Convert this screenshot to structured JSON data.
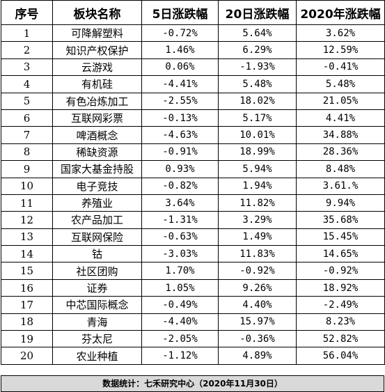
{
  "headers": [
    "序号",
    "板块名称",
    "5日涨跌幅",
    "20日涨跌幅",
    "2020年涨跌幅"
  ],
  "rows": [
    {
      "no": "1",
      "name": "可降解塑料",
      "d5": "-0.72%",
      "d20": "5.64%",
      "ytd": "3.62%"
    },
    {
      "no": "2",
      "name": "知识产权保护",
      "d5": "1.46%",
      "d20": "6.29%",
      "ytd": "12.59%"
    },
    {
      "no": "3",
      "name": "云游戏",
      "d5": "0.06%",
      "d20": "-1.93%",
      "ytd": "-0.41%"
    },
    {
      "no": "4",
      "name": "有机硅",
      "d5": "-4.41%",
      "d20": "5.48%",
      "ytd": "5.48%"
    },
    {
      "no": "5",
      "name": "有色冶炼加工",
      "d5": "-2.55%",
      "d20": "18.02%",
      "ytd": "21.05%"
    },
    {
      "no": "6",
      "name": "互联网彩票",
      "d5": "-0.13%",
      "d20": "5.17%",
      "ytd": "4.41%"
    },
    {
      "no": "7",
      "name": "啤酒概念",
      "d5": "-4.63%",
      "d20": "10.01%",
      "ytd": "34.88%"
    },
    {
      "no": "8",
      "name": "稀缺资源",
      "d5": "-0.91%",
      "d20": "18.99%",
      "ytd": "28.36%"
    },
    {
      "no": "9",
      "name": "国家大基金持股",
      "d5": "0.93%",
      "d20": "5.94%",
      "ytd": "8.48%"
    },
    {
      "no": "10",
      "name": "电子竞技",
      "d5": "-0.82%",
      "d20": "1.94%",
      "ytd": "3.61.%"
    },
    {
      "no": "11",
      "name": "养殖业",
      "d5": "3.64%",
      "d20": "11.82%",
      "ytd": "9.94%"
    },
    {
      "no": "12",
      "name": "农产品加工",
      "d5": "-1.31%",
      "d20": "3.29%",
      "ytd": "35.68%"
    },
    {
      "no": "13",
      "name": "互联网保险",
      "d5": "-0.63%",
      "d20": "1.49%",
      "ytd": "15.45%"
    },
    {
      "no": "14",
      "name": "钴",
      "d5": "-3.03%",
      "d20": "11.83%",
      "ytd": "14.65%"
    },
    {
      "no": "15",
      "name": "社区团购",
      "d5": "1.70%",
      "d20": "-0.92%",
      "ytd": "-0.92%"
    },
    {
      "no": "16",
      "name": "证券",
      "d5": "1.05%",
      "d20": "9.26%",
      "ytd": "18.92%"
    },
    {
      "no": "17",
      "name": "中芯国际概念",
      "d5": "-0.49%",
      "d20": "4.40%",
      "ytd": "-2.49%"
    },
    {
      "no": "18",
      "name": "青海",
      "d5": "-4.40%",
      "d20": "15.97%",
      "ytd": "8.23%"
    },
    {
      "no": "19",
      "name": "芬太尼",
      "d5": "-2.05%",
      "d20": "-0.36%",
      "ytd": "52.82%"
    },
    {
      "no": "20",
      "name": "农业种植",
      "d5": "-1.12%",
      "d20": "4.89%",
      "ytd": "56.04%"
    }
  ],
  "footer": "数据统计：七禾研究中心（2020年11月30日）"
}
